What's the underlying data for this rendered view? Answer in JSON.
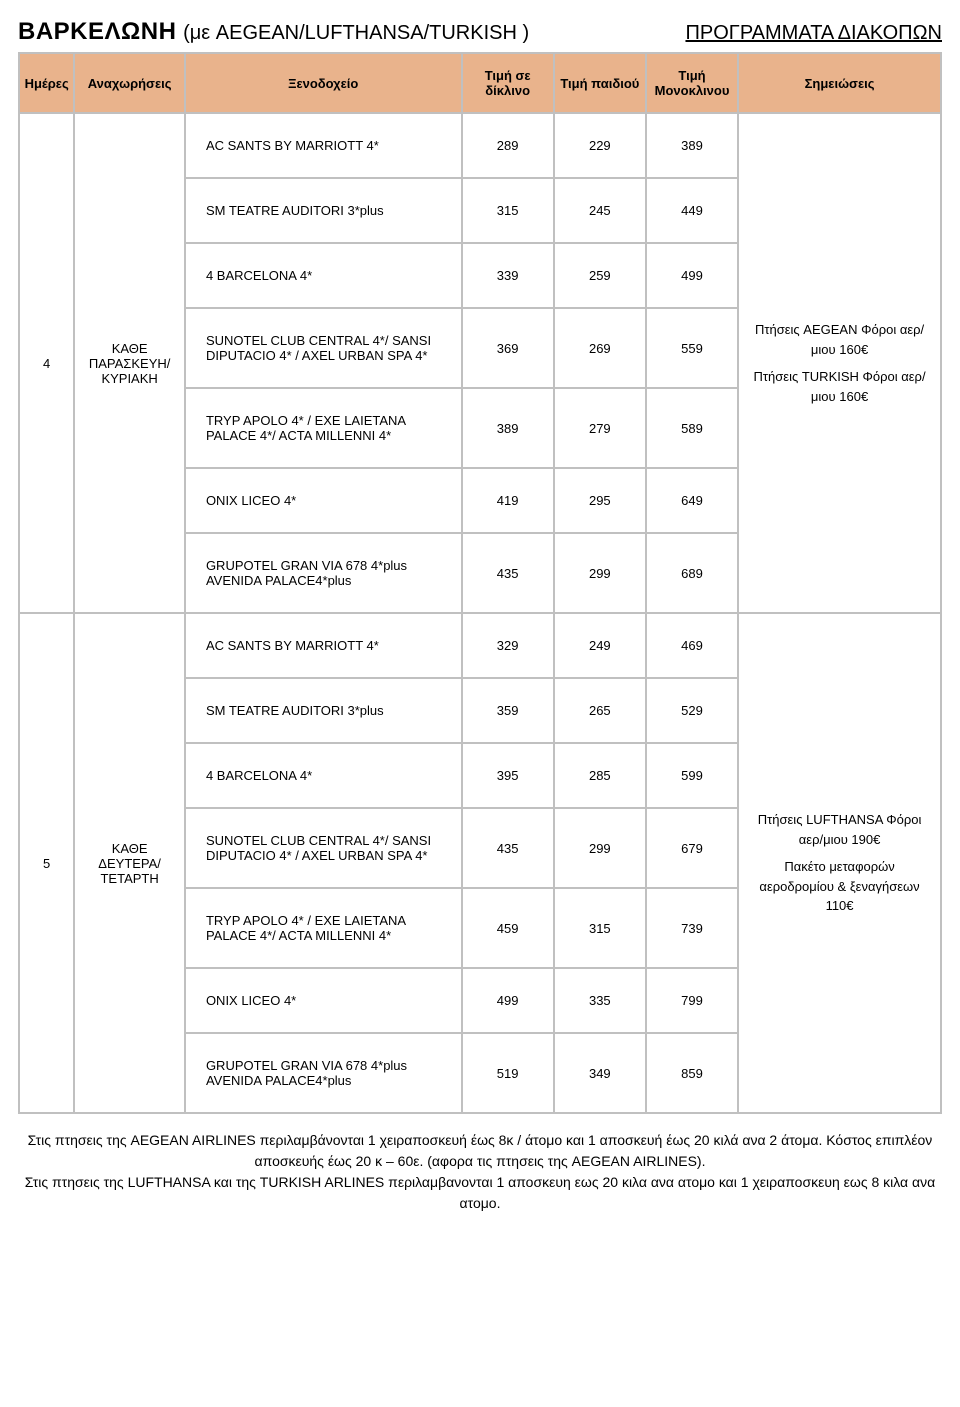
{
  "colors": {
    "header_bg": "#e9b38c",
    "cell_border": "#c0c0c0"
  },
  "title": {
    "destination": "ΒΑΡΚΕΛΩΝΗ",
    "carriers": "(με AEGEAN/LUFTHANSA/TURKISH )",
    "right": "ΠΡΟΓΡΑΜΜΑΤΑ ΔΙΑΚΟΠΩΝ"
  },
  "headers": {
    "days": "Ημέρες",
    "departures": "Αναχωρήσεις",
    "hotel": "Ξενοδοχείο",
    "price_twin": "Τιμή σε δίκλινο",
    "price_child": "Τιμή παιδιού",
    "price_single": "Τιμή Μονοκλινου",
    "notes": "Σημειώσεις"
  },
  "group1": {
    "days": "4",
    "departures": "ΚΑΘΕ ΠΑΡΑΣΚΕΥΗ/ ΚΥΡΙΑΚΗ",
    "notes": {
      "block1": "Πτήσεις AEGEAN Φόροι αερ/μιου 160€",
      "block2": "Πτήσεις TURKISH Φόροι αερ/μιου 160€"
    },
    "rows": {
      "r0": {
        "hotel": "AC SANTS BY MARRIOTT 4*",
        "p1": "289",
        "p2": "229",
        "p3": "389"
      },
      "r1": {
        "hotel": "SM TEATRE AUDITORI 3*plus",
        "p1": "315",
        "p2": "245",
        "p3": "449"
      },
      "r2": {
        "hotel": "4 BARCELONA 4*",
        "p1": "339",
        "p2": "259",
        "p3": "499"
      },
      "r3": {
        "hotel": "SUNOTEL CLUB CENTRAL 4*/ SANSI DIPUTACIO 4* / AXEL URBAN SPA 4*",
        "p1": "369",
        "p2": "269",
        "p3": "559"
      },
      "r4": {
        "hotel": "TRYP APOLO 4* / EXE LAIETANA PALACE 4*/ ACTA MILLENNI 4*",
        "p1": "389",
        "p2": "279",
        "p3": "589"
      },
      "r5": {
        "hotel": "ONIX LICEO 4*",
        "p1": "419",
        "p2": "295",
        "p3": "649"
      },
      "r6": {
        "hotel": "GRUPOTEL GRAN VIA 678 4*plus AVENIDA PALACE4*plus",
        "p1": "435",
        "p2": "299",
        "p3": "689"
      }
    }
  },
  "group2": {
    "days": "5",
    "departures": "ΚΑΘΕ ΔΕΥΤΕΡΑ/ ΤΕΤΑΡΤΗ",
    "notes": {
      "block1": "Πτήσεις LUFTHANSA Φόροι αερ/μιου 190€",
      "block2": "Πακέτο μεταφορών αεροδρομίου & ξεναγήσεων 110€"
    },
    "rows": {
      "r0": {
        "hotel": "AC SANTS BY MARRIOTT 4*",
        "p1": "329",
        "p2": "249",
        "p3": "469"
      },
      "r1": {
        "hotel": "SM TEATRE AUDITORI 3*plus",
        "p1": "359",
        "p2": "265",
        "p3": "529"
      },
      "r2": {
        "hotel": "4 BARCELONA 4*",
        "p1": "395",
        "p2": "285",
        "p3": "599"
      },
      "r3": {
        "hotel": "SUNOTEL CLUB CENTRAL 4*/ SANSI DIPUTACIO 4* / AXEL URBAN SPA 4*",
        "p1": "435",
        "p2": "299",
        "p3": "679"
      },
      "r4": {
        "hotel": "TRYP APOLO 4* / EXE LAIETANA PALACE 4*/ ACTA MILLENNI 4*",
        "p1": "459",
        "p2": "315",
        "p3": "739"
      },
      "r5": {
        "hotel": "ONIX LICEO 4*",
        "p1": "499",
        "p2": "335",
        "p3": "799"
      },
      "r6": {
        "hotel": "GRUPOTEL GRAN VIA 678 4*plus AVENIDA PALACE4*plus",
        "p1": "519",
        "p2": "349",
        "p3": "859"
      }
    }
  },
  "footnotes": {
    "l1": "Στις πτησεις της AEGEAN AIRLINES περιλαμβάνονται 1 χειραποσκευή έως 8κ / άτομο και 1 αποσκευή έως 20 κιλά ανα 2 άτομα. Κόστος επιπλέον αποσκευής έως 20 κ – 60ε. (αφορα τις πτησεις της AEGEAN AIRLINES).",
    "l2": "Στις πτησεις της LUFTHANSA και της TURKISH ARLINES περιλαμβανονται 1 αποσκευη εως 20 κιλα ανα ατομο και 1 χειραποσκευη εως 8 κιλα ανα ατομο."
  }
}
